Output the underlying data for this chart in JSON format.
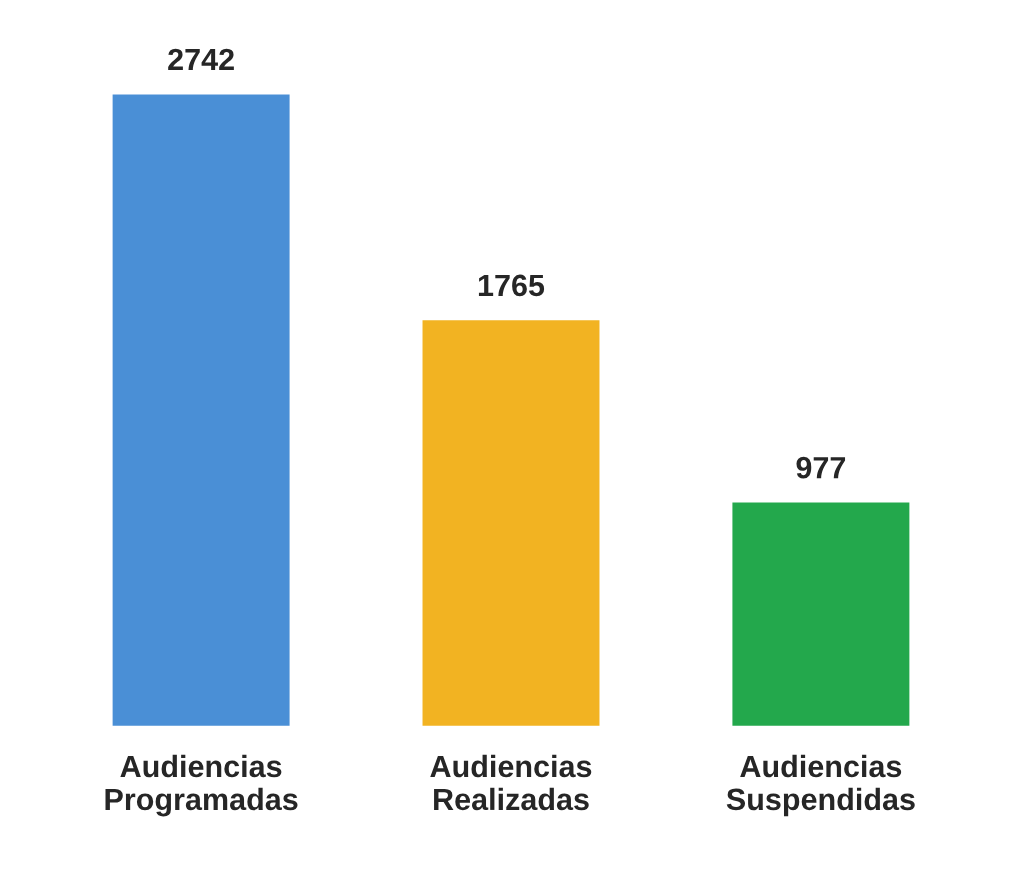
{
  "chart_data": {
    "type": "bar",
    "categories": [
      "Audiencias\nProgramadas",
      "Audiencias\nRealizadas",
      "Audiencias\nSuspendidas"
    ],
    "values": [
      2742,
      1765,
      977
    ],
    "colors": [
      "#4a8fd6",
      "#f2b322",
      "#23a84c"
    ],
    "data_labels": true
  }
}
